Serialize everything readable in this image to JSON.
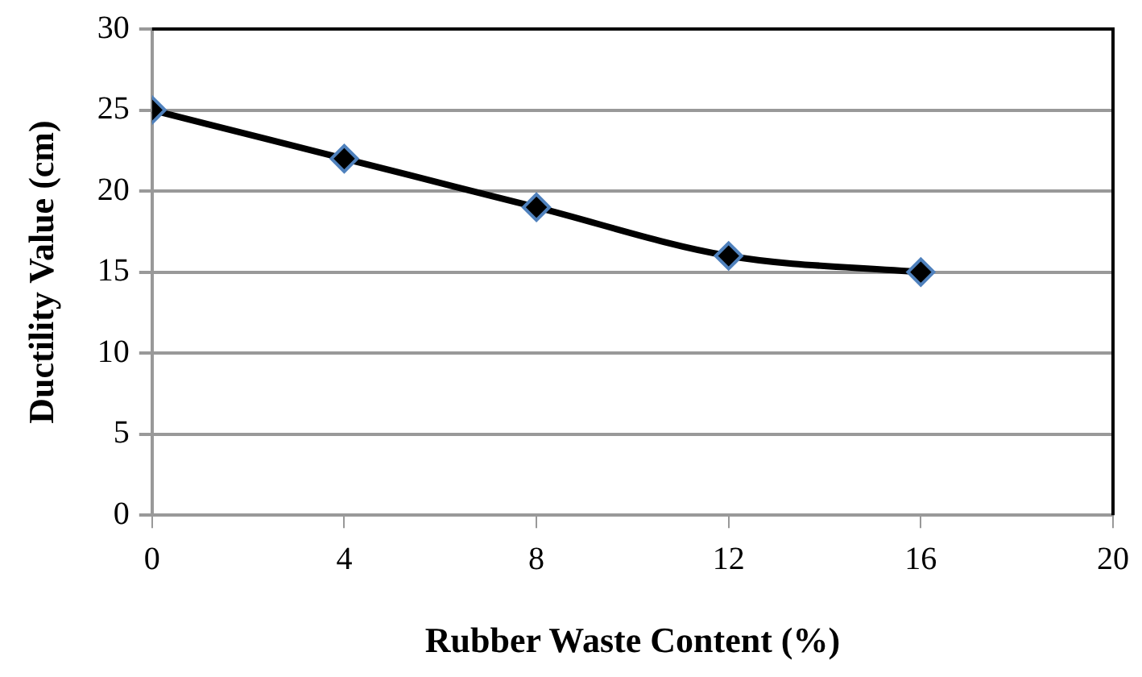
{
  "chart_data": {
    "type": "line",
    "xlabel": "Rubber Waste Content (%)",
    "ylabel": "Ductility Value (cm)",
    "x": [
      0,
      4,
      8,
      12,
      16
    ],
    "series": [
      {
        "color": "#000000",
        "values": [
          25,
          22,
          19,
          16,
          15
        ]
      }
    ],
    "xlim": [
      0,
      20
    ],
    "xticks": [
      0,
      4,
      8,
      12,
      16,
      20
    ],
    "ylim": [
      0,
      30
    ],
    "yticks": [
      0,
      5,
      10,
      15,
      20,
      25,
      30
    ],
    "grid": "y",
    "legend": false,
    "marker": "diamond",
    "line_style": "solid"
  }
}
